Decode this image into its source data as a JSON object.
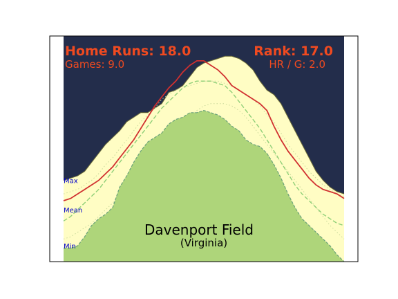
{
  "chart_data": {
    "type": "area",
    "title": "Davenport Field",
    "subtitle": "(Virginia)",
    "xlabel": "",
    "ylabel": "",
    "x": [
      0,
      1,
      2,
      3,
      4,
      5,
      6,
      7,
      8,
      9,
      10,
      11,
      12,
      13,
      14,
      15,
      16,
      17,
      18,
      19,
      20,
      21,
      22,
      23,
      24,
      25,
      26,
      27,
      28,
      29,
      30,
      31,
      32,
      33,
      34,
      35,
      36,
      37,
      38,
      39,
      40
    ],
    "xlim": [
      0,
      40
    ],
    "ylim": [
      0,
      1
    ],
    "grid": false,
    "series": [
      {
        "key": "max_envelope",
        "values": [
          0.36,
          0.37,
          0.38,
          0.4,
          0.44,
          0.48,
          0.52,
          0.55,
          0.58,
          0.62,
          0.64,
          0.66,
          0.66,
          0.68,
          0.7,
          0.75,
          0.76,
          0.78,
          0.82,
          0.86,
          0.88,
          0.89,
          0.9,
          0.91,
          0.91,
          0.9,
          0.88,
          0.85,
          0.8,
          0.76,
          0.74,
          0.7,
          0.64,
          0.58,
          0.52,
          0.46,
          0.4,
          0.36,
          0.33,
          0.31,
          0.3
        ]
      },
      {
        "key": "upper_dotted",
        "values": [
          0.3,
          0.31,
          0.32,
          0.34,
          0.36,
          0.39,
          0.43,
          0.46,
          0.5,
          0.54,
          0.58,
          0.62,
          0.65,
          0.68,
          0.72,
          0.74,
          0.76,
          0.77,
          0.78,
          0.79,
          0.8,
          0.8,
          0.8,
          0.79,
          0.78,
          0.76,
          0.74,
          0.72,
          0.69,
          0.65,
          0.62,
          0.57,
          0.52,
          0.48,
          0.44,
          0.4,
          0.37,
          0.34,
          0.32,
          0.3,
          0.29
        ]
      },
      {
        "key": "mean_dashed",
        "values": [
          0.18,
          0.2,
          0.23,
          0.26,
          0.29,
          0.32,
          0.36,
          0.4,
          0.44,
          0.48,
          0.52,
          0.56,
          0.6,
          0.64,
          0.68,
          0.71,
          0.74,
          0.77,
          0.79,
          0.8,
          0.8,
          0.8,
          0.79,
          0.78,
          0.75,
          0.71,
          0.67,
          0.63,
          0.59,
          0.54,
          0.49,
          0.44,
          0.39,
          0.34,
          0.3,
          0.27,
          0.24,
          0.21,
          0.19,
          0.17,
          0.16
        ]
      },
      {
        "key": "lower_dotted",
        "values": [
          0.1,
          0.11,
          0.13,
          0.15,
          0.17,
          0.2,
          0.23,
          0.26,
          0.29,
          0.32,
          0.36,
          0.4,
          0.44,
          0.48,
          0.52,
          0.55,
          0.58,
          0.61,
          0.64,
          0.67,
          0.69,
          0.7,
          0.7,
          0.7,
          0.69,
          0.67,
          0.64,
          0.6,
          0.56,
          0.52,
          0.48,
          0.44,
          0.4,
          0.36,
          0.32,
          0.28,
          0.24,
          0.2,
          0.16,
          0.13,
          0.1
        ]
      },
      {
        "key": "min_area",
        "values": [
          0.06,
          0.06,
          0.07,
          0.11,
          0.16,
          0.19,
          0.21,
          0.24,
          0.33,
          0.38,
          0.44,
          0.49,
          0.53,
          0.55,
          0.57,
          0.61,
          0.63,
          0.64,
          0.66,
          0.66,
          0.67,
          0.66,
          0.65,
          0.63,
          0.6,
          0.58,
          0.54,
          0.52,
          0.51,
          0.48,
          0.43,
          0.37,
          0.3,
          0.24,
          0.19,
          0.16,
          0.13,
          0.1,
          0.07,
          0.03,
          0.0
        ]
      },
      {
        "key": "season_line",
        "values": [
          0.27,
          0.28,
          0.3,
          0.32,
          0.34,
          0.36,
          0.39,
          0.42,
          0.46,
          0.5,
          0.54,
          0.59,
          0.64,
          0.69,
          0.73,
          0.77,
          0.8,
          0.84,
          0.87,
          0.89,
          0.89,
          0.87,
          0.85,
          0.82,
          0.78,
          0.76,
          0.74,
          0.72,
          0.7,
          0.67,
          0.6,
          0.54,
          0.49,
          0.45,
          0.41,
          0.37,
          0.34,
          0.32,
          0.31,
          0.3,
          0.28
        ]
      }
    ],
    "side_labels": {
      "max": "Max",
      "mean": "Mean",
      "min": "Min"
    },
    "side_label_values": {
      "max": 0.36,
      "mean": 0.23,
      "min": 0.07
    },
    "stats": {
      "home_runs": "Home Runs: 18.0",
      "games": "Games: 9.0",
      "rank": "Rank: 17.0",
      "hr_per_game": "HR / G: 2.0"
    },
    "colors": {
      "sky": "#232d4b",
      "band": "#fffdc4",
      "min_fill": "#aed57a",
      "min_edge": "#6aa27a",
      "mean_line": "#8fcf78",
      "dotted": "#c8d89a",
      "season_line": "#d03030",
      "stat_text": "#f04a20",
      "side_label_text": "#0000cc",
      "title_text": "#000000"
    }
  }
}
